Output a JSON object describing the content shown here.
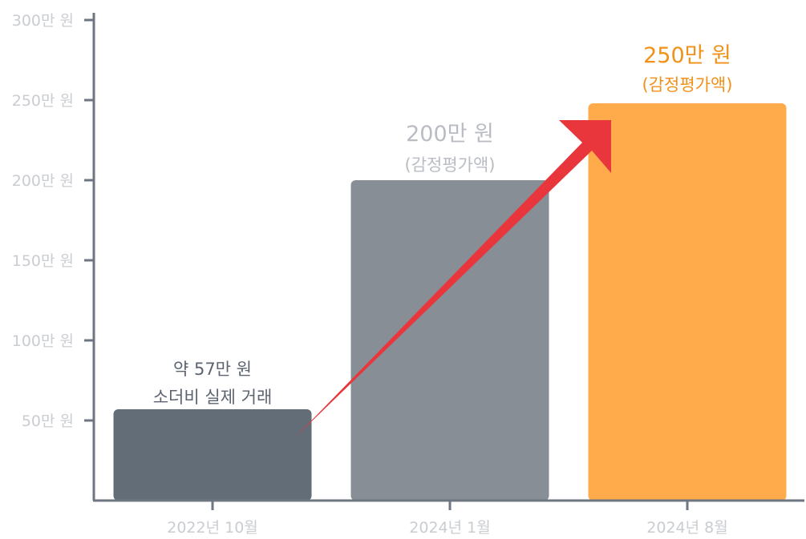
{
  "chart_data": {
    "type": "bar",
    "categories": [
      "2022년 10월",
      "2024년 1월",
      "2024년 8월"
    ],
    "values": [
      57,
      200,
      248
    ],
    "ylim": [
      0,
      300
    ],
    "yticks": [
      50,
      100,
      150,
      200,
      250,
      300
    ],
    "ytick_labels": [
      "50만 원",
      "100만 원",
      "150만 원",
      "200만 원",
      "250만 원",
      "300만 원"
    ],
    "bar_colors": [
      "#636d78",
      "#878e96",
      "#ffab4c"
    ],
    "annotations": [
      {
        "line1": "약 57만 원",
        "line2": "소더비 실제 거래",
        "color1": "#5b6470",
        "color2": "#5b6470"
      },
      {
        "line1": "200만 원",
        "line2": "(감정평가액)",
        "color1": "#b9bdc3",
        "color2": "#b9bdc3"
      },
      {
        "line1": "250만 원",
        "line2": "(감정평가액)",
        "color1": "#f0921a",
        "color2": "#f0921a"
      }
    ],
    "arrow_color": "#e8363c",
    "axis_color": "#6e7682",
    "grid": false,
    "legend": "none"
  }
}
